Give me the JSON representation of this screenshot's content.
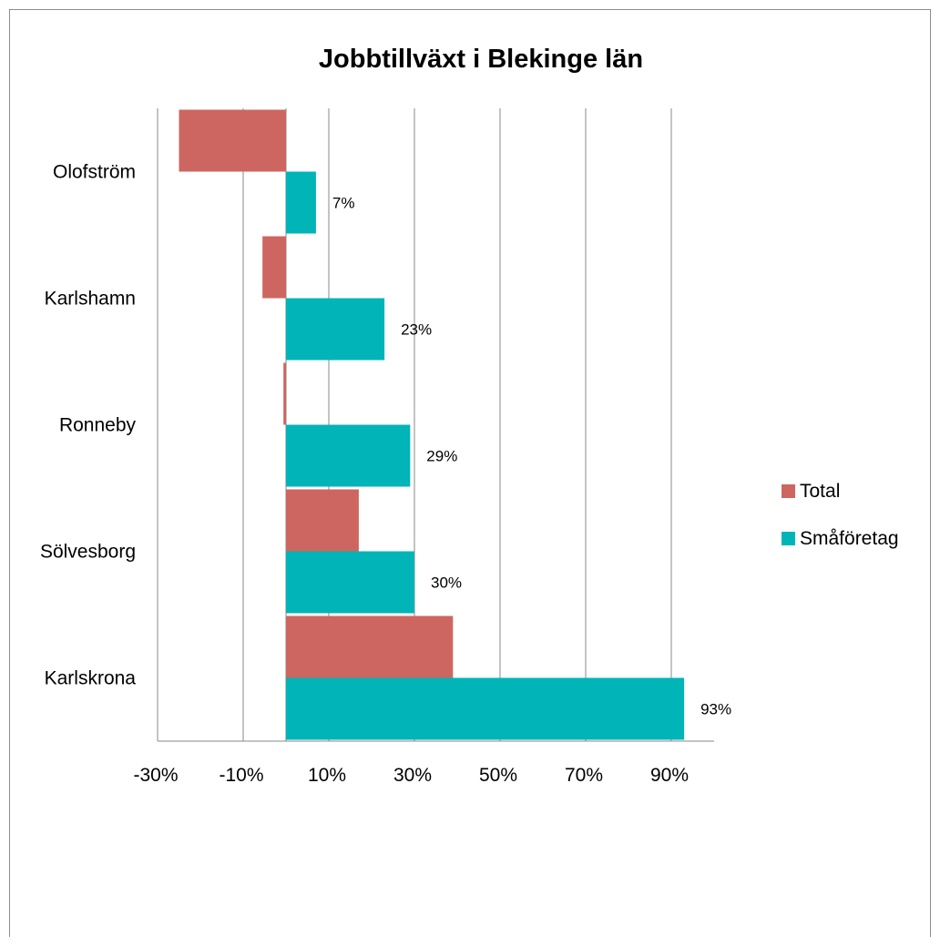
{
  "chart_data": {
    "type": "bar",
    "orientation": "horizontal",
    "title": "Jobbtillväxt i Blekinge län",
    "xlabel": "",
    "ylabel": "",
    "categories": [
      "Olofström",
      "Karlshamn",
      "Ronneby",
      "Sölvesborg",
      "Karlskrona"
    ],
    "series": [
      {
        "name": "Total",
        "color": "#cd6660",
        "values": [
          -0.25,
          -0.055,
          -0.006,
          0.17,
          0.39
        ],
        "data_labels": [
          "",
          "",
          "",
          "",
          ""
        ]
      },
      {
        "name": "Småföretag",
        "color": "#00b4b8",
        "values": [
          0.07,
          0.23,
          0.29,
          0.3,
          0.93
        ],
        "data_labels": [
          "7%",
          "23%",
          "29%",
          "30%",
          "93%"
        ]
      }
    ],
    "xlim": [
      -0.3,
      1.0
    ],
    "x_ticks": [
      -0.3,
      -0.1,
      0.1,
      0.3,
      0.5,
      0.7,
      0.9
    ],
    "x_tick_labels": [
      "-30%",
      "-10%",
      "10%",
      "30%",
      "50%",
      "70%",
      "90%"
    ],
    "grid": true,
    "legend_position": "right"
  }
}
